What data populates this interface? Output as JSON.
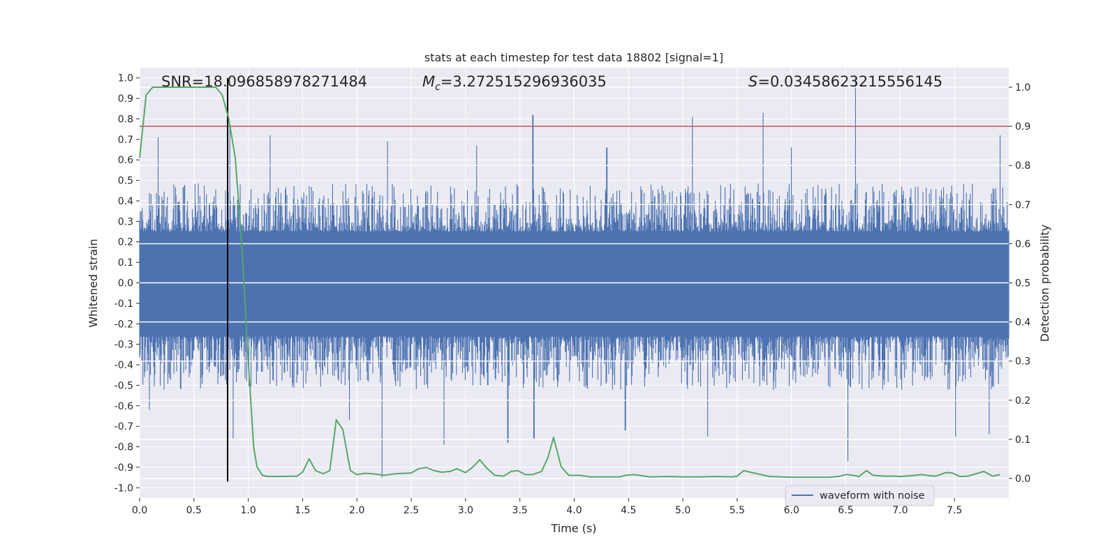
{
  "chart_data": {
    "type": "line",
    "title": "stats at each timestep for test data 18802 [signal=1]",
    "xlabel": "Time (s)",
    "ylabel_left": "Whitened strain",
    "ylabel_right": "Detection probability",
    "xlim": [
      0,
      8
    ],
    "ylim_left": [
      -1.05,
      1.05
    ],
    "ylim_right": [
      -0.05,
      1.05
    ],
    "x_ticks": [
      "0.0",
      "0.5",
      "1.0",
      "1.5",
      "2.0",
      "2.5",
      "3.0",
      "3.5",
      "4.0",
      "4.5",
      "5.0",
      "5.5",
      "6.0",
      "6.5",
      "7.0",
      "7.5"
    ],
    "y_ticks_left": [
      "1.0",
      "0.9",
      "0.8",
      "0.7",
      "0.6",
      "0.5",
      "0.4",
      "0.3",
      "0.2",
      "0.1",
      "0.0",
      "-0.1",
      "-0.2",
      "-0.3",
      "-0.4",
      "-0.5",
      "-0.6",
      "-0.7",
      "-0.8",
      "-0.9",
      "-1.0"
    ],
    "y_ticks_right": [
      "1.0",
      "0.9",
      "0.8",
      "0.7",
      "0.6",
      "0.5",
      "0.4",
      "0.3",
      "0.2",
      "0.1",
      "0.0"
    ],
    "grid": true,
    "legend_position": "bottom-right",
    "annotations": {
      "snr": "SNR=18.096858978271484",
      "mc_symbol": "M",
      "mc_sub": "c",
      "mc_value": "=3.272515296936035",
      "s_symbol": "S",
      "s_value": "=0.03458623215556145"
    },
    "threshold": {
      "axis": "right",
      "value": 0.9,
      "color": "#c44e52"
    },
    "event_marker": {
      "x": 0.81,
      "y_range": [
        -0.97,
        1.0
      ],
      "color": "#000000"
    },
    "series": [
      {
        "name": "waveform with noise",
        "axis": "left",
        "kind": "noisy_envelope",
        "color": "#4c72b0",
        "core_band": [
          -0.16,
          0.16
        ],
        "typical_max": 0.42,
        "typical_min": -0.45,
        "peaks": [
          {
            "x": 0.17,
            "y": 0.71
          },
          {
            "x": 0.83,
            "y": 0.76
          },
          {
            "x": 1.2,
            "y": 0.72
          },
          {
            "x": 2.28,
            "y": 0.69
          },
          {
            "x": 3.62,
            "y": 0.82
          },
          {
            "x": 5.09,
            "y": 0.81
          },
          {
            "x": 5.74,
            "y": 0.83
          },
          {
            "x": 6.59,
            "y": 1.0
          },
          {
            "x": 7.92,
            "y": 0.72
          },
          {
            "x": 3.1,
            "y": 0.67
          },
          {
            "x": 4.3,
            "y": 0.66
          },
          {
            "x": 6.0,
            "y": 0.66
          }
        ],
        "troughs": [
          {
            "x": 0.09,
            "y": -0.62
          },
          {
            "x": 0.86,
            "y": -0.76
          },
          {
            "x": 2.23,
            "y": -0.95
          },
          {
            "x": 2.8,
            "y": -0.79
          },
          {
            "x": 3.39,
            "y": -0.78
          },
          {
            "x": 3.63,
            "y": -0.76
          },
          {
            "x": 4.47,
            "y": -0.72
          },
          {
            "x": 5.23,
            "y": -0.75
          },
          {
            "x": 6.52,
            "y": -0.87
          },
          {
            "x": 7.51,
            "y": -0.75
          },
          {
            "x": 7.82,
            "y": -0.74
          },
          {
            "x": 1.93,
            "y": -0.67
          }
        ]
      },
      {
        "name": "detection probability",
        "axis": "right",
        "color": "#55a868",
        "x": [
          0.0,
          0.06,
          0.12,
          0.2,
          0.3,
          0.4,
          0.5,
          0.6,
          0.7,
          0.76,
          0.82,
          0.88,
          0.94,
          1.0,
          1.05,
          1.08,
          1.13,
          1.18,
          1.3,
          1.45,
          1.5,
          1.56,
          1.62,
          1.69,
          1.75,
          1.81,
          1.87,
          1.94,
          2.0,
          2.07,
          2.15,
          2.25,
          2.35,
          2.5,
          2.57,
          2.64,
          2.71,
          2.78,
          2.86,
          2.92,
          3.0,
          3.07,
          3.13,
          3.2,
          3.27,
          3.35,
          3.42,
          3.48,
          3.55,
          3.62,
          3.7,
          3.76,
          3.81,
          3.88,
          3.95,
          4.05,
          4.15,
          4.3,
          4.42,
          4.47,
          4.55,
          4.7,
          4.85,
          5.0,
          5.15,
          5.3,
          5.45,
          5.5,
          5.56,
          5.62,
          5.8,
          6.0,
          6.2,
          6.35,
          6.45,
          6.5,
          6.57,
          6.62,
          6.69,
          6.75,
          6.85,
          6.95,
          7.0,
          7.1,
          7.2,
          7.27,
          7.33,
          7.42,
          7.48,
          7.55,
          7.62,
          7.7,
          7.77,
          7.85,
          7.92
        ],
        "y": [
          0.82,
          0.98,
          1.0,
          1.0,
          1.0,
          1.0,
          1.0,
          1.0,
          1.0,
          0.98,
          0.92,
          0.82,
          0.6,
          0.3,
          0.08,
          0.03,
          0.008,
          0.005,
          0.005,
          0.006,
          0.016,
          0.05,
          0.02,
          0.012,
          0.02,
          0.15,
          0.125,
          0.02,
          0.01,
          0.013,
          0.012,
          0.008,
          0.012,
          0.014,
          0.025,
          0.028,
          0.02,
          0.016,
          0.018,
          0.025,
          0.015,
          0.03,
          0.048,
          0.025,
          0.008,
          0.006,
          0.018,
          0.02,
          0.01,
          0.01,
          0.018,
          0.055,
          0.105,
          0.03,
          0.008,
          0.008,
          0.004,
          0.004,
          0.004,
          0.008,
          0.01,
          0.004,
          0.005,
          0.004,
          0.004,
          0.005,
          0.004,
          0.006,
          0.02,
          0.016,
          0.005,
          0.003,
          0.003,
          0.003,
          0.006,
          0.01,
          0.008,
          0.005,
          0.02,
          0.008,
          0.006,
          0.006,
          0.005,
          0.007,
          0.01,
          0.007,
          0.006,
          0.015,
          0.014,
          0.005,
          0.006,
          0.012,
          0.018,
          0.006,
          0.01
        ]
      }
    ]
  }
}
